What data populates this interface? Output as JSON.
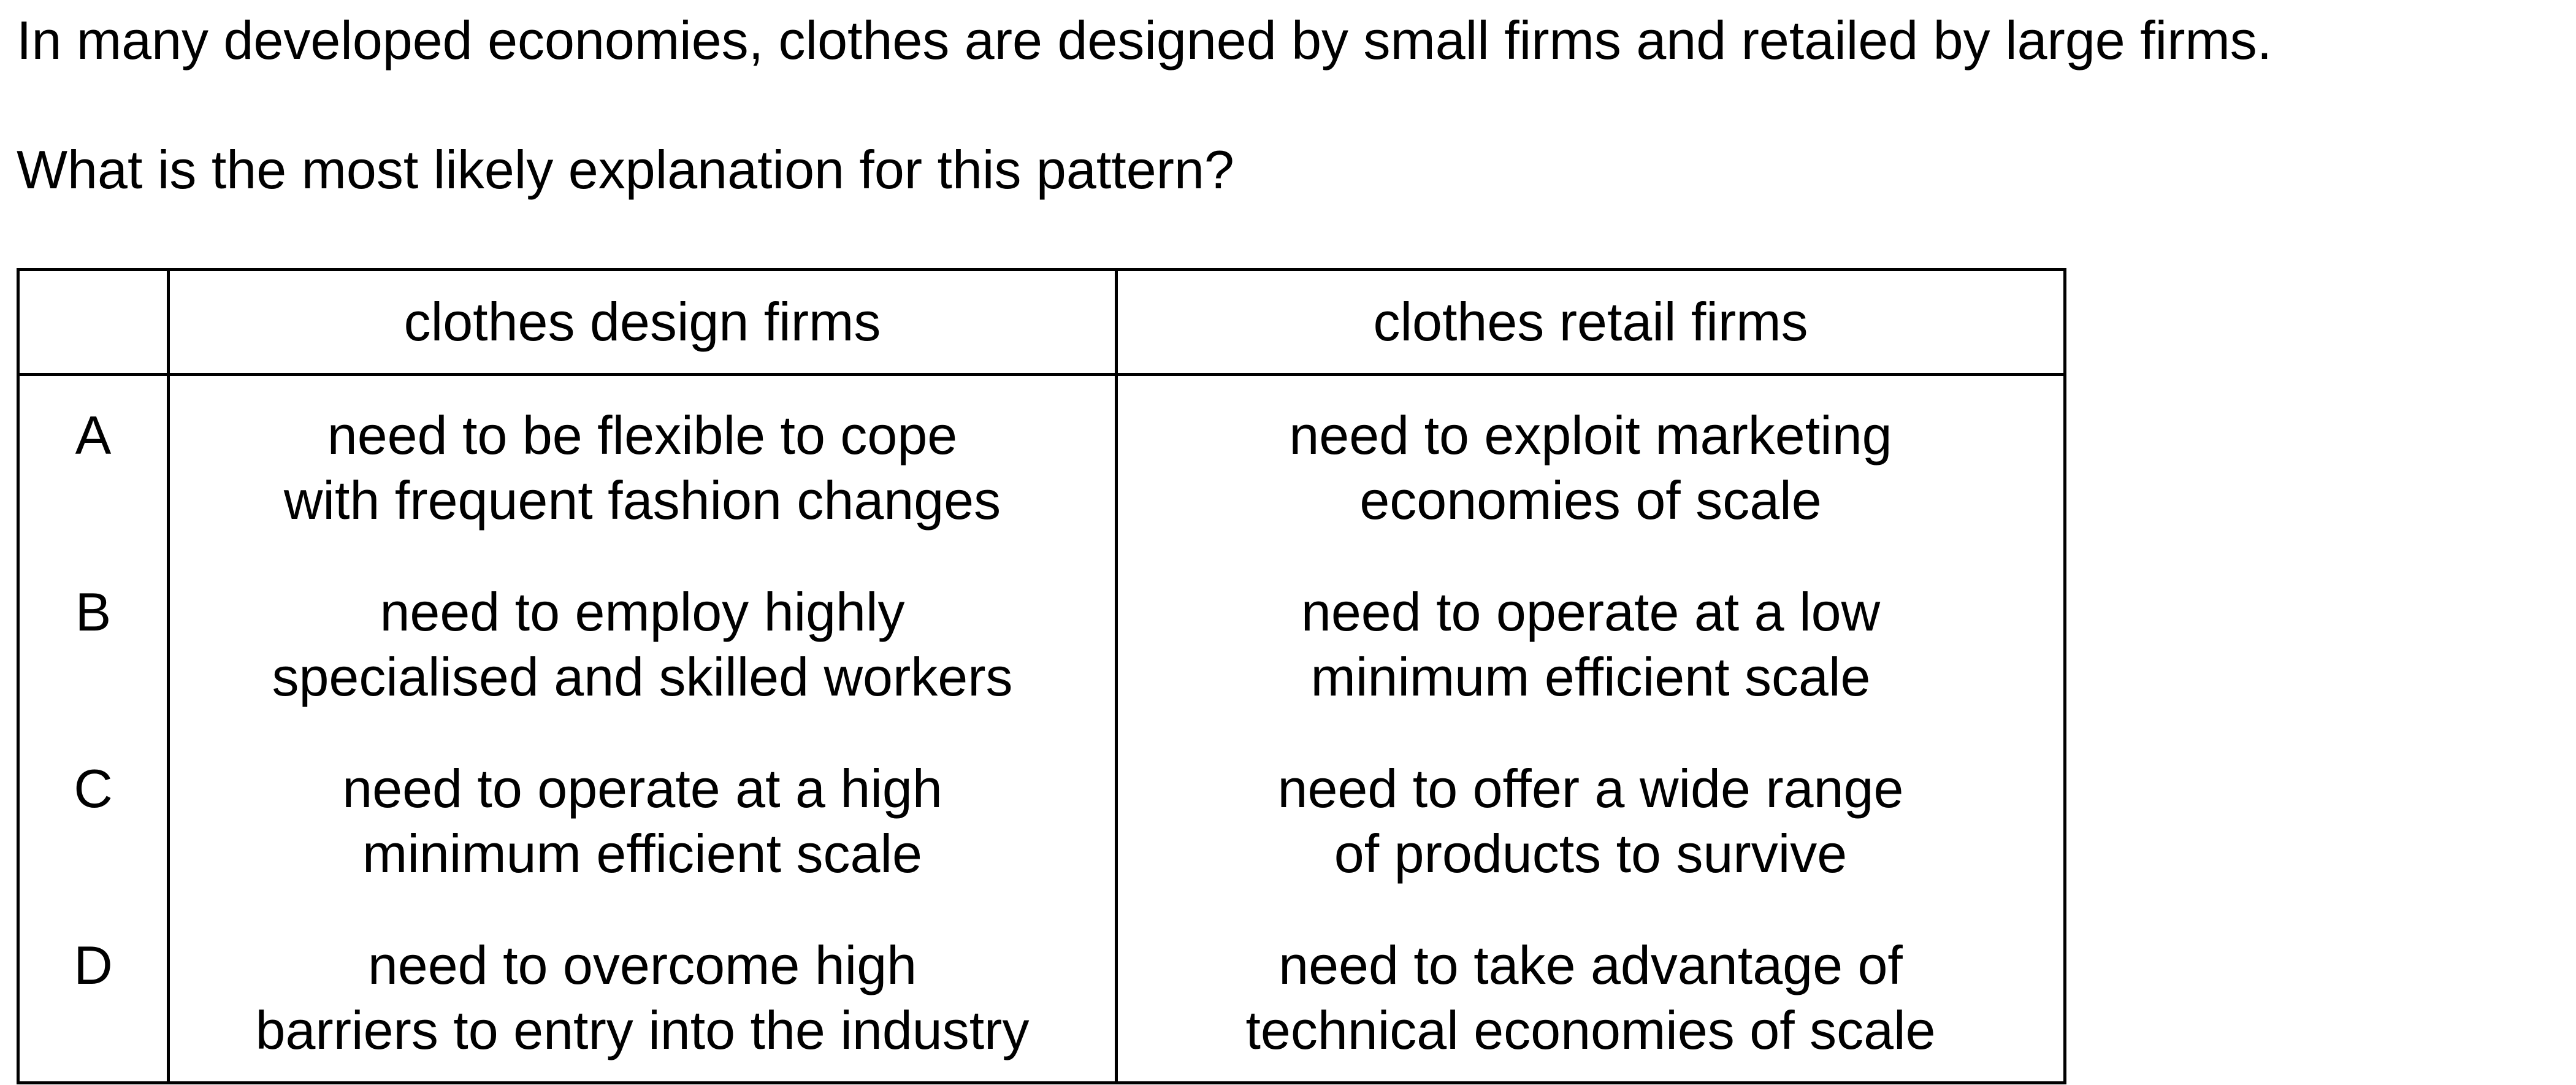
{
  "stem": "In many developed economies, clothes are designed by small firms and retailed by large firms.",
  "question": "What is the most likely explanation for this pattern?",
  "table": {
    "headers": [
      "",
      "clothes design firms",
      "clothes retail firms"
    ],
    "rows": [
      {
        "letter": "A",
        "design": [
          "need to be flexible to cope",
          "with frequent fashion changes"
        ],
        "retail": [
          "need to exploit marketing",
          "economies of scale"
        ]
      },
      {
        "letter": "B",
        "design": [
          "need to employ highly",
          "specialised and skilled workers"
        ],
        "retail": [
          "need to operate at a low",
          "minimum efficient scale"
        ]
      },
      {
        "letter": "C",
        "design": [
          "need to operate at a high",
          "minimum efficient scale"
        ],
        "retail": [
          "need to offer a wide range",
          "of products to survive"
        ]
      },
      {
        "letter": "D",
        "design": [
          "need to overcome high",
          "barriers to entry into the industry"
        ],
        "retail": [
          "need to take advantage of",
          "technical economies of scale"
        ]
      }
    ]
  }
}
